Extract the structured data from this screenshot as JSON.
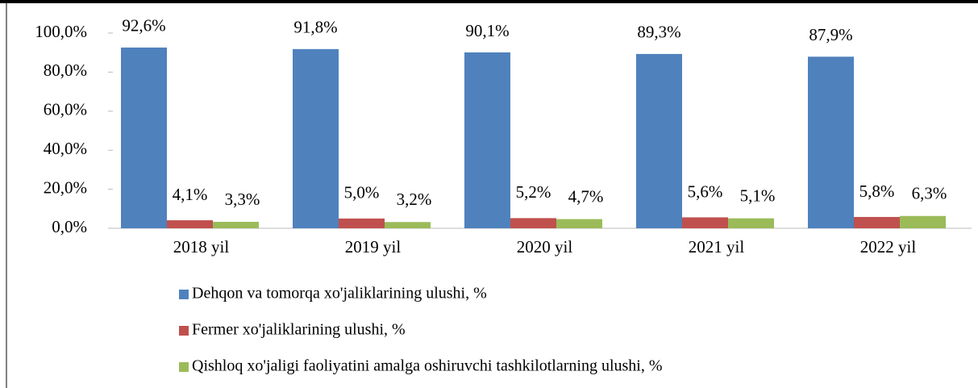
{
  "chart_data": {
    "type": "bar",
    "categories": [
      "2018 yil",
      "2019 yil",
      "2020 yil",
      "2021 yil",
      "2022 yil"
    ],
    "series": [
      {
        "name": "Dehqon va tomorqa xo'jaliklarining ulushi, %",
        "color": "#4f81bd",
        "values": [
          92.6,
          91.8,
          90.1,
          89.3,
          87.9
        ],
        "value_labels": [
          "92,6%",
          "91,8%",
          "90,1%",
          "89,3%",
          "87,9%"
        ]
      },
      {
        "name": "Fermer xo'jaliklarining ulushi, %",
        "color": "#c0504d",
        "values": [
          4.1,
          5.0,
          5.2,
          5.6,
          5.8
        ],
        "value_labels": [
          "4,1%",
          "5,0%",
          "5,2%",
          "5,6%",
          "5,8%"
        ]
      },
      {
        "name": "Qishloq xo'jaligi faoliyatini amalga oshiruvchi tashkilotlarning ulushi, %",
        "color": "#9bbb59",
        "values": [
          3.3,
          3.2,
          4.7,
          5.1,
          6.3
        ],
        "value_labels": [
          "3,3%",
          "3,2%",
          "4,7%",
          "5,1%",
          "6,3%"
        ]
      }
    ],
    "ylim": [
      0,
      100
    ],
    "yticks": [
      {
        "value": 0,
        "label": "0,0%"
      },
      {
        "value": 20,
        "label": "20,0%"
      },
      {
        "value": 40,
        "label": "40,0%"
      },
      {
        "value": 60,
        "label": "60,0%"
      },
      {
        "value": 80,
        "label": "80,0%"
      },
      {
        "value": 100,
        "label": "100,0%"
      }
    ],
    "grid": false,
    "legend": "bottom"
  }
}
